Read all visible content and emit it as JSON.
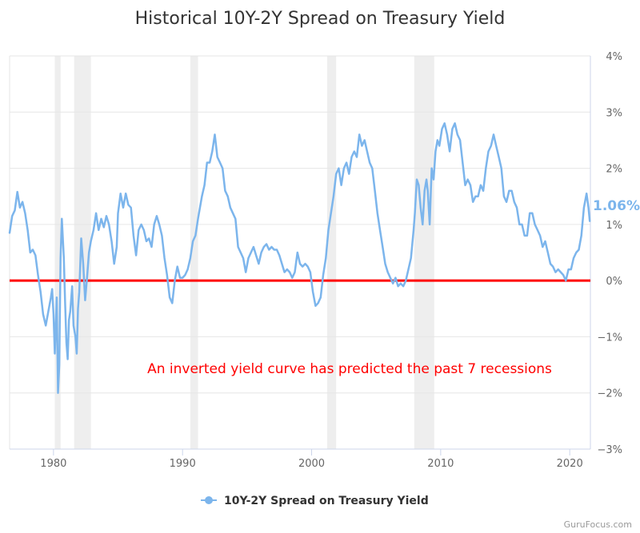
{
  "chart_data": {
    "type": "line",
    "title": "Historical 10Y-2Y Spread on Treasury Yield",
    "xlabel": "",
    "ylabel": "",
    "xlim": [
      1976.6,
      2021.6
    ],
    "ylim": [
      -3,
      4
    ],
    "x_ticks": [
      1980,
      1990,
      2000,
      2010,
      2020
    ],
    "y_ticks": [
      -3,
      -2,
      -1,
      0,
      1,
      2,
      3,
      4
    ],
    "y_tick_labels": [
      "−3%",
      "−2%",
      "−1%",
      "0%",
      "1%",
      "2%",
      "3%",
      "4%"
    ],
    "y_axis_side": "right",
    "grid": "horizontal",
    "legend": "bottom-center",
    "series": [
      {
        "name": "10Y-2Y Spread on Treasury Yield",
        "color": "#7cb5ec",
        "points": [
          [
            1976.6,
            0.85
          ],
          [
            1976.8,
            1.15
          ],
          [
            1977.0,
            1.25
          ],
          [
            1977.2,
            1.58
          ],
          [
            1977.4,
            1.3
          ],
          [
            1977.6,
            1.4
          ],
          [
            1977.8,
            1.2
          ],
          [
            1978.0,
            0.9
          ],
          [
            1978.2,
            0.5
          ],
          [
            1978.4,
            0.55
          ],
          [
            1978.6,
            0.45
          ],
          [
            1978.8,
            0.1
          ],
          [
            1979.0,
            -0.2
          ],
          [
            1979.2,
            -0.6
          ],
          [
            1979.4,
            -0.8
          ],
          [
            1979.6,
            -0.55
          ],
          [
            1979.8,
            -0.3
          ],
          [
            1979.9,
            -0.15
          ],
          [
            1980.0,
            -0.6
          ],
          [
            1980.1,
            -1.3
          ],
          [
            1980.25,
            -0.3
          ],
          [
            1980.35,
            -2.0
          ],
          [
            1980.45,
            -1.5
          ],
          [
            1980.55,
            0.4
          ],
          [
            1980.65,
            1.1
          ],
          [
            1980.8,
            0.4
          ],
          [
            1980.9,
            -0.4
          ],
          [
            1981.0,
            -1.1
          ],
          [
            1981.1,
            -1.4
          ],
          [
            1981.2,
            -0.7
          ],
          [
            1981.3,
            -0.55
          ],
          [
            1981.45,
            -0.1
          ],
          [
            1981.55,
            -0.8
          ],
          [
            1981.7,
            -1.0
          ],
          [
            1981.8,
            -1.3
          ],
          [
            1981.9,
            -0.5
          ],
          [
            1982.0,
            -0.2
          ],
          [
            1982.15,
            0.75
          ],
          [
            1982.3,
            0.3
          ],
          [
            1982.45,
            -0.35
          ],
          [
            1982.6,
            0.05
          ],
          [
            1982.75,
            0.5
          ],
          [
            1982.9,
            0.7
          ],
          [
            1983.1,
            0.9
          ],
          [
            1983.3,
            1.2
          ],
          [
            1983.5,
            0.9
          ],
          [
            1983.7,
            1.1
          ],
          [
            1983.9,
            0.95
          ],
          [
            1984.1,
            1.15
          ],
          [
            1984.3,
            1.0
          ],
          [
            1984.5,
            0.7
          ],
          [
            1984.7,
            0.3
          ],
          [
            1984.9,
            0.6
          ],
          [
            1985.0,
            1.2
          ],
          [
            1985.2,
            1.55
          ],
          [
            1985.4,
            1.3
          ],
          [
            1985.6,
            1.55
          ],
          [
            1985.8,
            1.35
          ],
          [
            1986.0,
            1.3
          ],
          [
            1986.2,
            0.8
          ],
          [
            1986.4,
            0.45
          ],
          [
            1986.6,
            0.9
          ],
          [
            1986.8,
            1.0
          ],
          [
            1987.0,
            0.9
          ],
          [
            1987.2,
            0.7
          ],
          [
            1987.4,
            0.75
          ],
          [
            1987.6,
            0.6
          ],
          [
            1987.8,
            1.0
          ],
          [
            1988.0,
            1.15
          ],
          [
            1988.2,
            1.0
          ],
          [
            1988.4,
            0.8
          ],
          [
            1988.6,
            0.4
          ],
          [
            1988.8,
            0.1
          ],
          [
            1989.0,
            -0.3
          ],
          [
            1989.2,
            -0.4
          ],
          [
            1989.4,
            0.0
          ],
          [
            1989.6,
            0.25
          ],
          [
            1989.8,
            0.05
          ],
          [
            1990.0,
            0.05
          ],
          [
            1990.2,
            0.1
          ],
          [
            1990.4,
            0.2
          ],
          [
            1990.6,
            0.4
          ],
          [
            1990.8,
            0.7
          ],
          [
            1991.0,
            0.8
          ],
          [
            1991.2,
            1.1
          ],
          [
            1991.5,
            1.5
          ],
          [
            1991.7,
            1.7
          ],
          [
            1991.9,
            2.1
          ],
          [
            1992.1,
            2.1
          ],
          [
            1992.3,
            2.3
          ],
          [
            1992.5,
            2.6
          ],
          [
            1992.7,
            2.2
          ],
          [
            1992.9,
            2.1
          ],
          [
            1993.1,
            2.0
          ],
          [
            1993.3,
            1.6
          ],
          [
            1993.5,
            1.5
          ],
          [
            1993.7,
            1.3
          ],
          [
            1993.9,
            1.2
          ],
          [
            1994.1,
            1.1
          ],
          [
            1994.3,
            0.6
          ],
          [
            1994.5,
            0.5
          ],
          [
            1994.7,
            0.4
          ],
          [
            1994.9,
            0.15
          ],
          [
            1995.1,
            0.4
          ],
          [
            1995.3,
            0.5
          ],
          [
            1995.5,
            0.6
          ],
          [
            1995.7,
            0.45
          ],
          [
            1995.9,
            0.3
          ],
          [
            1996.1,
            0.5
          ],
          [
            1996.3,
            0.6
          ],
          [
            1996.5,
            0.65
          ],
          [
            1996.7,
            0.55
          ],
          [
            1996.9,
            0.6
          ],
          [
            1997.1,
            0.55
          ],
          [
            1997.3,
            0.55
          ],
          [
            1997.5,
            0.45
          ],
          [
            1997.7,
            0.3
          ],
          [
            1997.9,
            0.15
          ],
          [
            1998.1,
            0.2
          ],
          [
            1998.3,
            0.15
          ],
          [
            1998.5,
            0.05
          ],
          [
            1998.7,
            0.15
          ],
          [
            1998.9,
            0.5
          ],
          [
            1999.1,
            0.3
          ],
          [
            1999.3,
            0.25
          ],
          [
            1999.5,
            0.3
          ],
          [
            1999.7,
            0.25
          ],
          [
            1999.9,
            0.15
          ],
          [
            2000.1,
            -0.2
          ],
          [
            2000.3,
            -0.45
          ],
          [
            2000.5,
            -0.4
          ],
          [
            2000.7,
            -0.3
          ],
          [
            2000.9,
            0.1
          ],
          [
            2001.1,
            0.4
          ],
          [
            2001.3,
            0.9
          ],
          [
            2001.5,
            1.2
          ],
          [
            2001.7,
            1.5
          ],
          [
            2001.9,
            1.9
          ],
          [
            2002.1,
            2.0
          ],
          [
            2002.3,
            1.7
          ],
          [
            2002.5,
            2.0
          ],
          [
            2002.7,
            2.1
          ],
          [
            2002.9,
            1.9
          ],
          [
            2003.1,
            2.2
          ],
          [
            2003.3,
            2.3
          ],
          [
            2003.5,
            2.2
          ],
          [
            2003.7,
            2.6
          ],
          [
            2003.9,
            2.4
          ],
          [
            2004.1,
            2.5
          ],
          [
            2004.3,
            2.3
          ],
          [
            2004.5,
            2.1
          ],
          [
            2004.7,
            2.0
          ],
          [
            2004.9,
            1.6
          ],
          [
            2005.1,
            1.2
          ],
          [
            2005.3,
            0.9
          ],
          [
            2005.5,
            0.6
          ],
          [
            2005.7,
            0.3
          ],
          [
            2005.9,
            0.15
          ],
          [
            2006.1,
            0.05
          ],
          [
            2006.3,
            -0.05
          ],
          [
            2006.5,
            0.05
          ],
          [
            2006.7,
            -0.1
          ],
          [
            2006.9,
            -0.05
          ],
          [
            2007.1,
            -0.1
          ],
          [
            2007.3,
            0.0
          ],
          [
            2007.5,
            0.2
          ],
          [
            2007.7,
            0.4
          ],
          [
            2007.9,
            0.9
          ],
          [
            2008.0,
            1.2
          ],
          [
            2008.15,
            1.8
          ],
          [
            2008.3,
            1.7
          ],
          [
            2008.45,
            1.3
          ],
          [
            2008.6,
            1.0
          ],
          [
            2008.75,
            1.6
          ],
          [
            2008.9,
            1.8
          ],
          [
            2009.0,
            1.6
          ],
          [
            2009.15,
            1.0
          ],
          [
            2009.3,
            2.0
          ],
          [
            2009.45,
            1.8
          ],
          [
            2009.6,
            2.3
          ],
          [
            2009.75,
            2.5
          ],
          [
            2009.9,
            2.4
          ],
          [
            2010.1,
            2.7
          ],
          [
            2010.3,
            2.8
          ],
          [
            2010.5,
            2.6
          ],
          [
            2010.7,
            2.3
          ],
          [
            2010.9,
            2.7
          ],
          [
            2011.1,
            2.8
          ],
          [
            2011.3,
            2.6
          ],
          [
            2011.5,
            2.5
          ],
          [
            2011.7,
            2.1
          ],
          [
            2011.9,
            1.7
          ],
          [
            2012.1,
            1.8
          ],
          [
            2012.3,
            1.7
          ],
          [
            2012.5,
            1.4
          ],
          [
            2012.7,
            1.5
          ],
          [
            2012.9,
            1.5
          ],
          [
            2013.1,
            1.7
          ],
          [
            2013.3,
            1.6
          ],
          [
            2013.5,
            2.0
          ],
          [
            2013.7,
            2.3
          ],
          [
            2013.9,
            2.4
          ],
          [
            2014.1,
            2.6
          ],
          [
            2014.3,
            2.4
          ],
          [
            2014.5,
            2.2
          ],
          [
            2014.7,
            2.0
          ],
          [
            2014.9,
            1.5
          ],
          [
            2015.1,
            1.4
          ],
          [
            2015.3,
            1.6
          ],
          [
            2015.5,
            1.6
          ],
          [
            2015.7,
            1.4
          ],
          [
            2015.9,
            1.3
          ],
          [
            2016.1,
            1.0
          ],
          [
            2016.3,
            1.0
          ],
          [
            2016.5,
            0.8
          ],
          [
            2016.7,
            0.8
          ],
          [
            2016.9,
            1.2
          ],
          [
            2017.1,
            1.2
          ],
          [
            2017.3,
            1.0
          ],
          [
            2017.5,
            0.9
          ],
          [
            2017.7,
            0.8
          ],
          [
            2017.9,
            0.6
          ],
          [
            2018.1,
            0.7
          ],
          [
            2018.3,
            0.5
          ],
          [
            2018.5,
            0.3
          ],
          [
            2018.7,
            0.25
          ],
          [
            2018.9,
            0.15
          ],
          [
            2019.1,
            0.2
          ],
          [
            2019.3,
            0.15
          ],
          [
            2019.5,
            0.1
          ],
          [
            2019.7,
            0.0
          ],
          [
            2019.9,
            0.2
          ],
          [
            2020.1,
            0.2
          ],
          [
            2020.3,
            0.4
          ],
          [
            2020.5,
            0.5
          ],
          [
            2020.7,
            0.55
          ],
          [
            2020.9,
            0.8
          ],
          [
            2021.1,
            1.3
          ],
          [
            2021.3,
            1.55
          ],
          [
            2021.45,
            1.3
          ],
          [
            2021.55,
            1.06
          ]
        ]
      }
    ],
    "last_value_label": "1.06%",
    "recession_bands": [
      [
        1980.1,
        1980.55
      ],
      [
        1981.6,
        1982.9
      ],
      [
        1990.6,
        1991.2
      ],
      [
        2001.2,
        2001.9
      ],
      [
        2007.95,
        2009.5
      ]
    ],
    "reference_line": {
      "y": 0,
      "color": "#ff0000"
    },
    "annotation": {
      "text": "An inverted yield curve has predicted the past 7 recessions",
      "color": "#ff0000"
    }
  },
  "credit": "GuruFocus.com",
  "colors": {
    "series": "#7cb5ec",
    "zero_line": "#ff0000",
    "recession": "#eeeeee",
    "grid": "#e6e6e6"
  }
}
